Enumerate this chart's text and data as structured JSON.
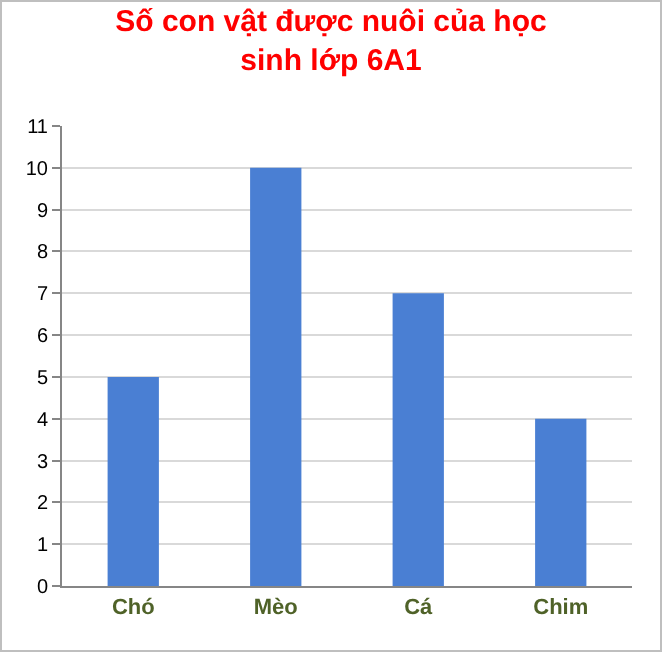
{
  "chart_data": {
    "type": "bar",
    "title": "Số con vật được nuôi của học sinh lớp 6A1",
    "categories": [
      "Chó",
      "Mèo",
      "Cá",
      "Chim"
    ],
    "values": [
      5,
      10,
      7,
      4
    ],
    "color": "#4a7fd3",
    "ylim": [
      0,
      11
    ],
    "yticks": [
      0,
      1,
      2,
      3,
      4,
      5,
      6,
      7,
      8,
      9,
      10,
      11
    ],
    "grid": "y",
    "legend": false
  }
}
